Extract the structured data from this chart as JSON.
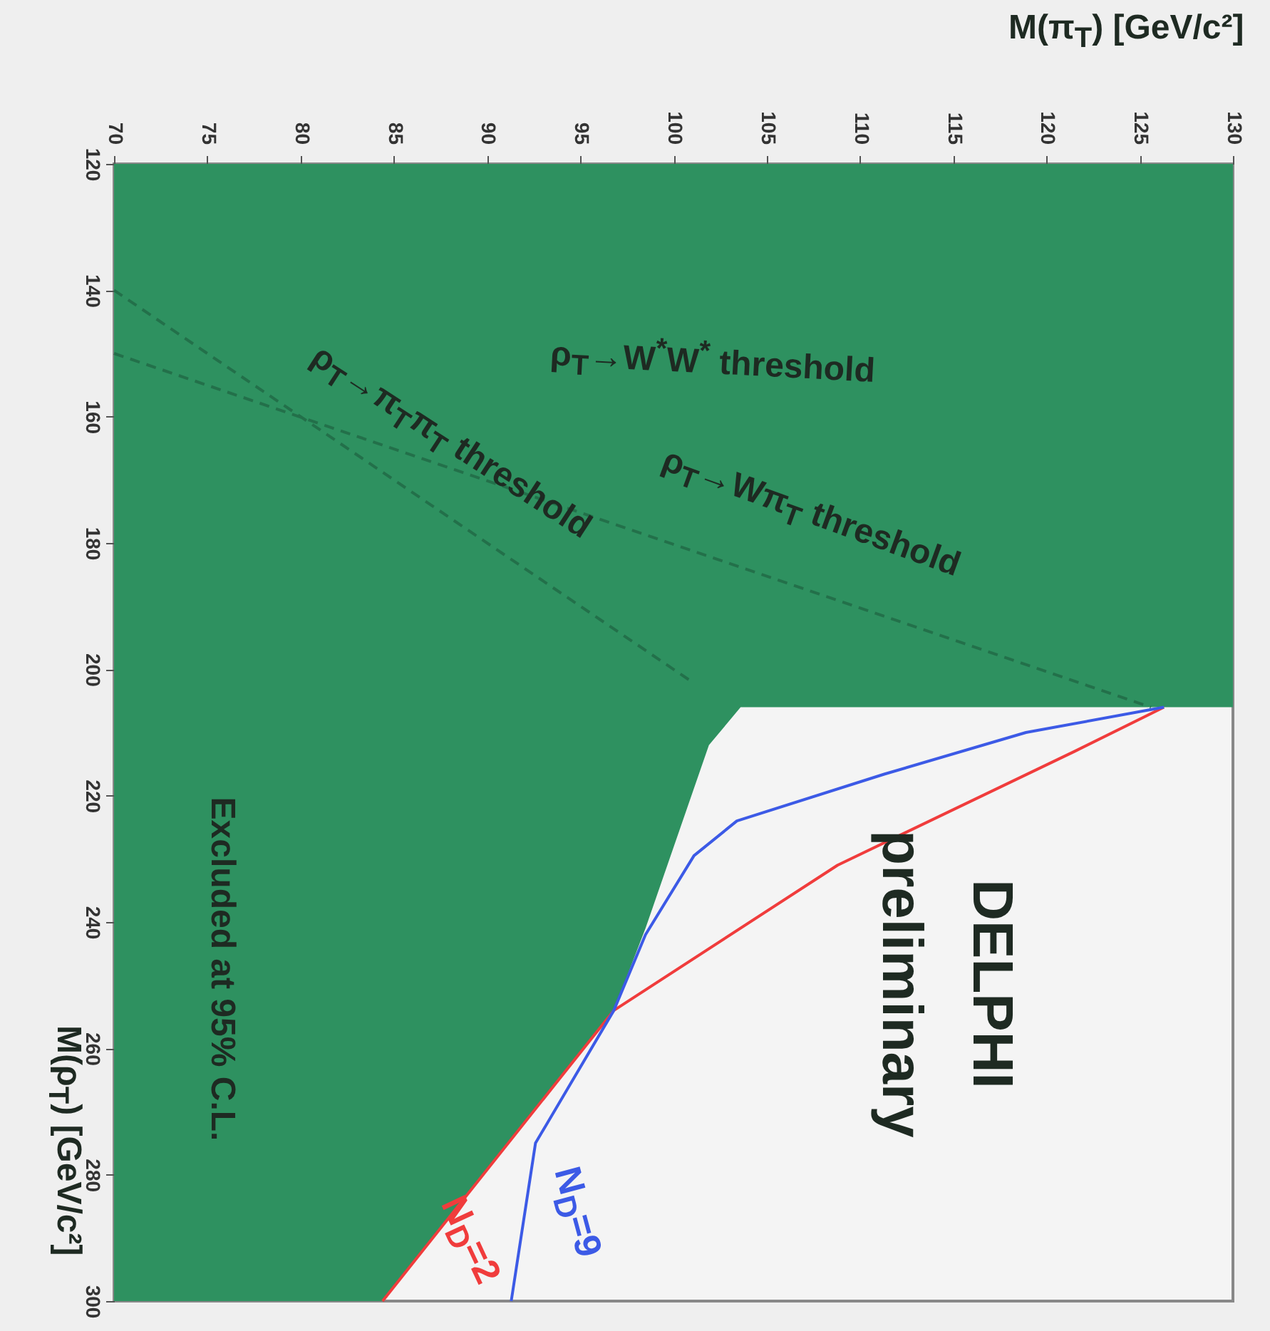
{
  "chart_data": {
    "type": "line",
    "xlabel": "M(π$_{T}$) [GeV/c²]",
    "ylabel": "M(ρ$_{T}$) [GeV/c²]",
    "xlim": [
      70,
      130
    ],
    "xticks": [
      70,
      75,
      80,
      85,
      90,
      95,
      100,
      105,
      110,
      115,
      120,
      125,
      130
    ],
    "ylim": [
      300,
      120
    ],
    "yticks": [
      120,
      140,
      160,
      180,
      200,
      220,
      240,
      260,
      280,
      300
    ],
    "series": [
      {
        "type": "area",
        "color": "#2e9160",
        "x": [
          70,
          84.4,
          96.8,
          98.5,
          101.9,
          103.6,
          130
        ],
        "values": [
          300,
          300,
          254,
          241,
          212,
          206,
          206
        ]
      },
      {
        "line_style": "dashed",
        "color": "#23704a",
        "x": [
          70,
          101
        ],
        "values": [
          140,
          202
        ]
      },
      {
        "line_style": "dashed",
        "color": "#23704a",
        "x": [
          70,
          125.6
        ],
        "values": [
          150,
          206
        ]
      },
      {
        "name": "N$_{D}$=2",
        "color": "#f03c3c",
        "x": [
          84.4,
          96.8,
          108.8,
          121.5,
          126.3
        ],
        "values": [
          300,
          254,
          231,
          213,
          206
        ]
      },
      {
        "name": "N$_{D}$=9",
        "color": "#3c5ae6",
        "x": [
          91.3,
          92.6,
          96.8,
          98.5,
          101.1,
          103.4,
          111.3,
          118.9,
          126.3
        ],
        "values": [
          300,
          275,
          254,
          242,
          229.5,
          224,
          216.6,
          210,
          206
        ]
      }
    ],
    "annotations": [
      "ρ$_{T}$→W$^{*}$W$^{*}$ threshold",
      "ρ$_{T}$→Wπ$_{T}$ threshold",
      "ρ$_{T}$→π$_{T}$π$_{T}$ threshold",
      "Excluded at 95% C.L.",
      "DELPHI",
      "preliminary"
    ]
  }
}
